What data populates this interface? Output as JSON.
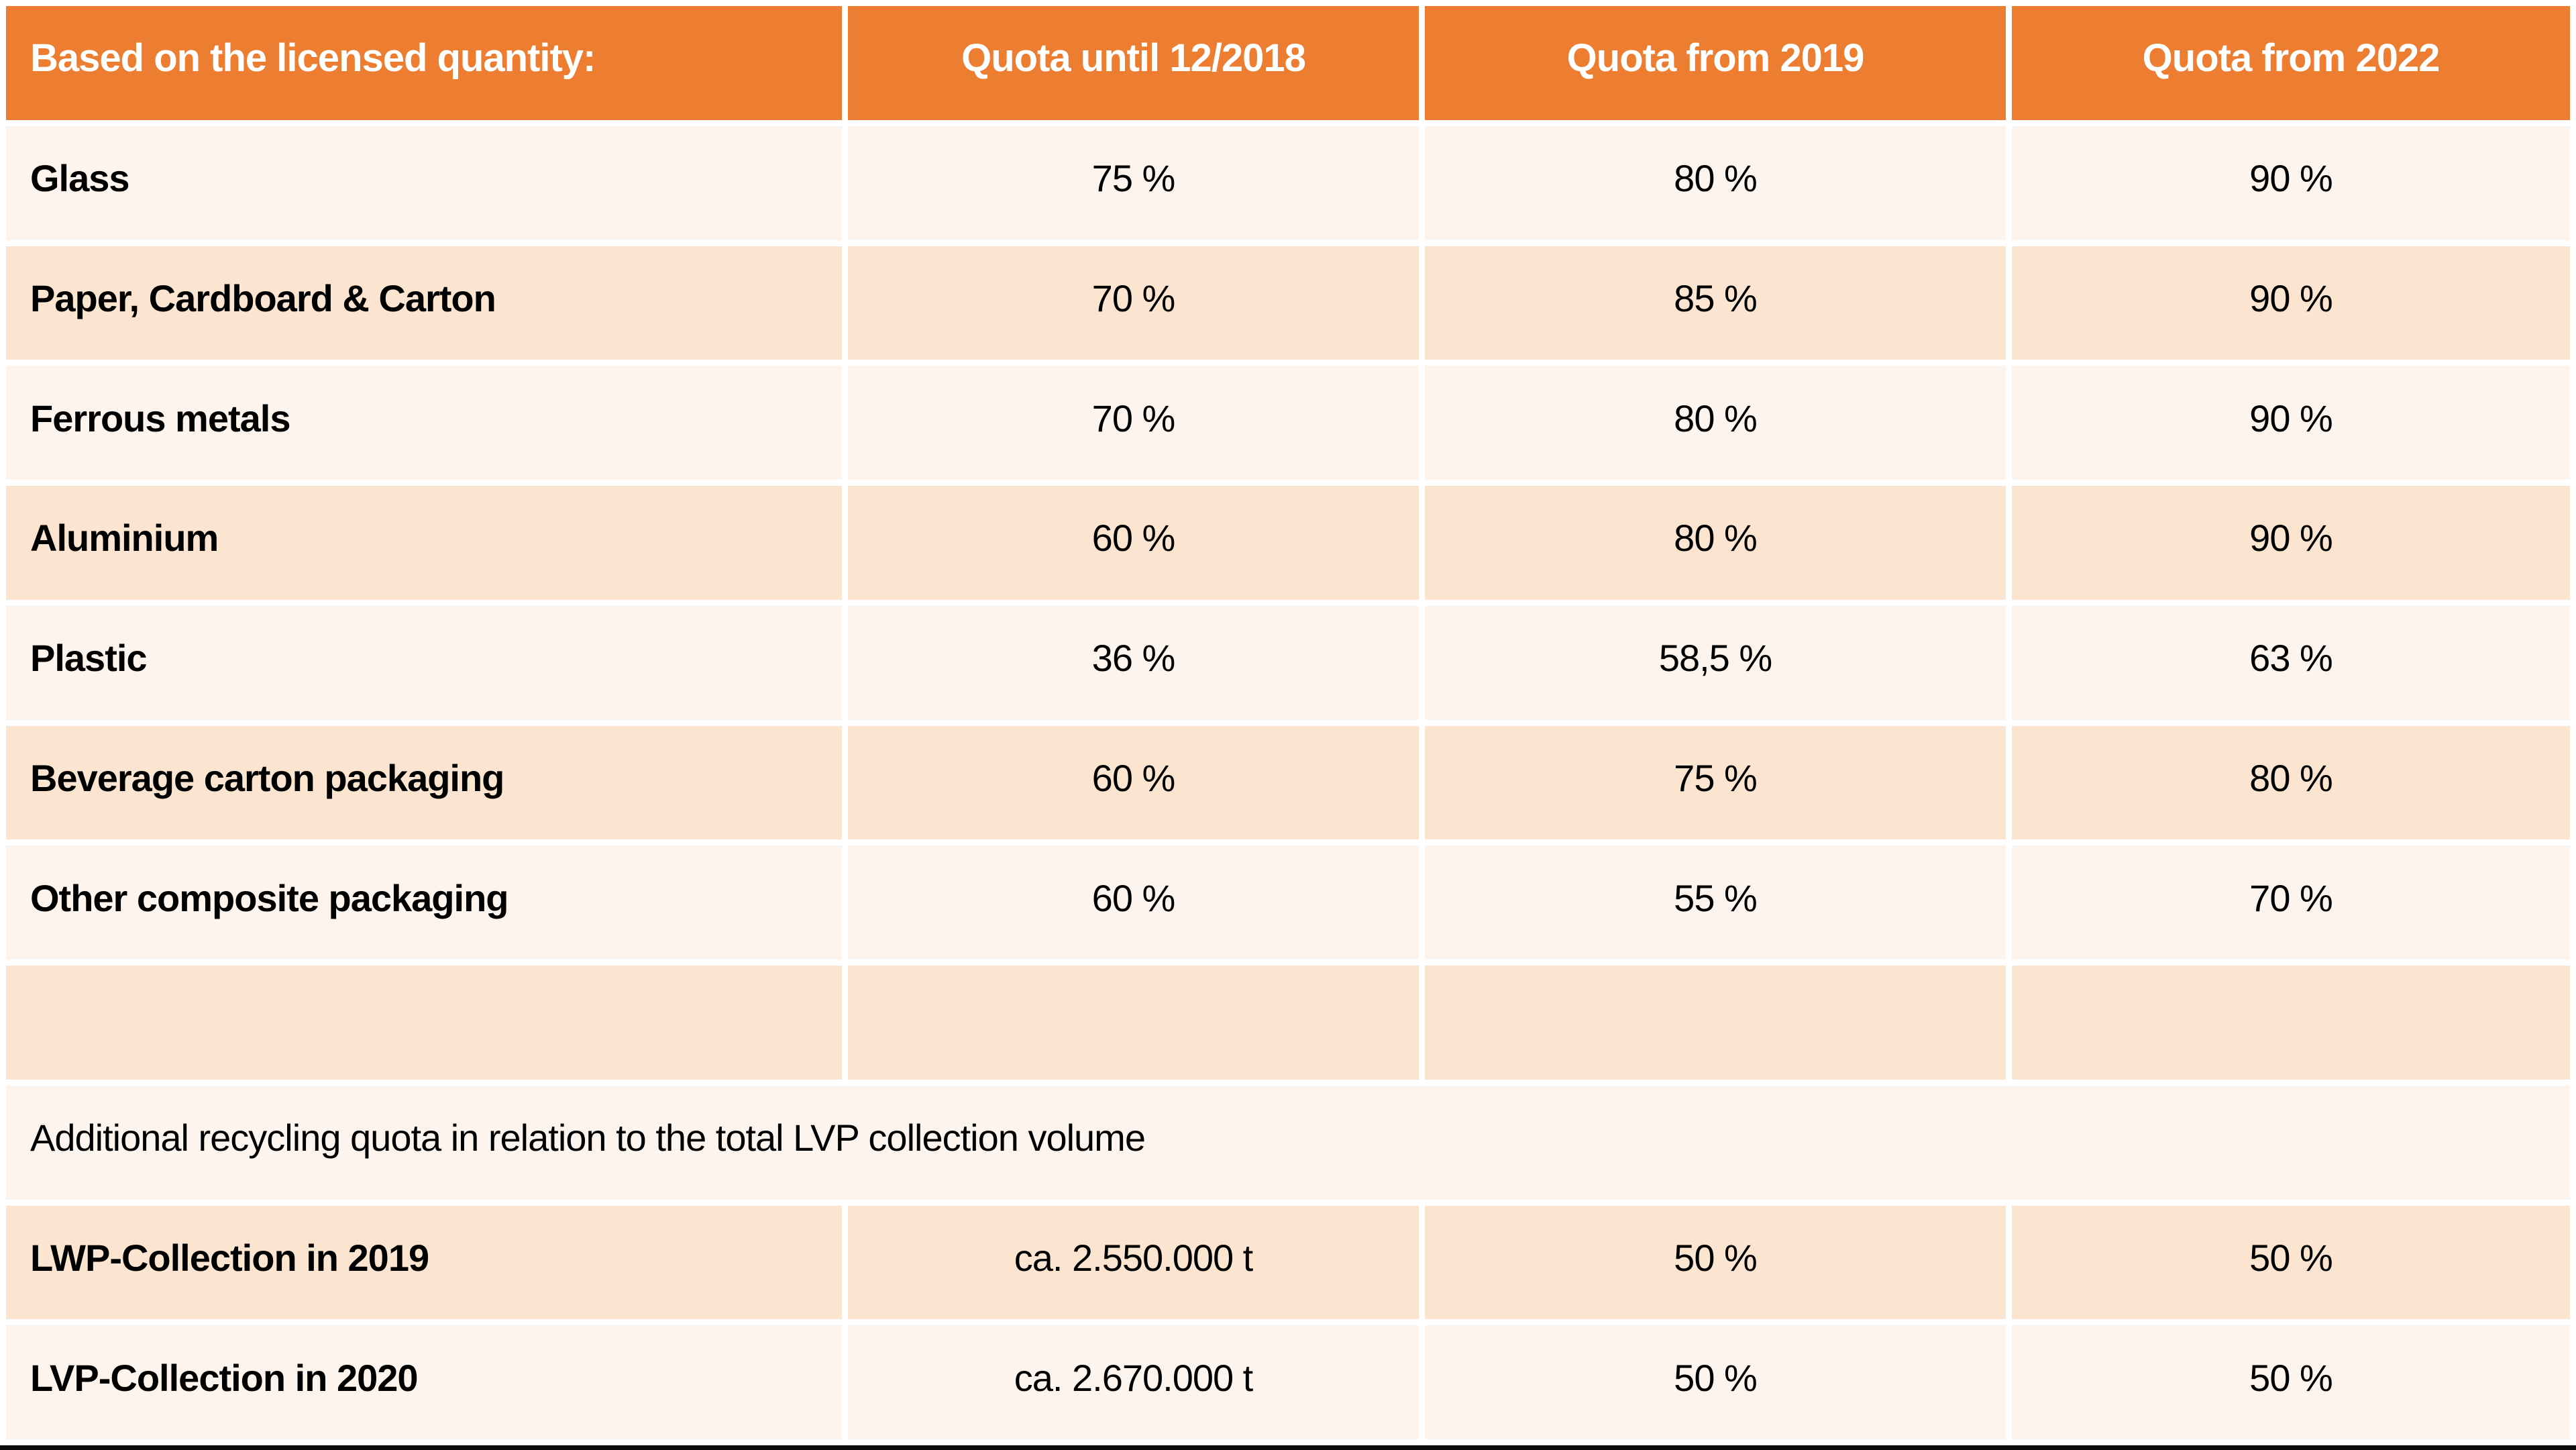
{
  "table": {
    "header": [
      "Based on the licensed quantity:",
      "Quota until 12/2018",
      "Quota from 2019",
      "Quota from 2022"
    ],
    "rows": [
      {
        "label": "Glass",
        "values": [
          "75 %",
          "80 %",
          "90 %"
        ]
      },
      {
        "label": "Paper, Cardboard & Carton",
        "values": [
          "70 %",
          "85 %",
          "90 %"
        ]
      },
      {
        "label": "Ferrous metals",
        "values": [
          "70 %",
          "80 %",
          "90 %"
        ]
      },
      {
        "label": "Aluminium",
        "values": [
          "60 %",
          "80 %",
          "90 %"
        ]
      },
      {
        "label": "Plastic",
        "values": [
          "36 %",
          "58,5 %",
          "63 %"
        ]
      },
      {
        "label": "Beverage carton packaging",
        "values": [
          "60 %",
          "75 %",
          "80 %"
        ]
      },
      {
        "label": "Other composite packaging",
        "values": [
          "60 %",
          "55 %",
          "70 %"
        ]
      }
    ],
    "note": "Additional recycling quota in relation to the total LVP collection volume",
    "collection_rows": [
      {
        "label": "LWP-Collection in 2019",
        "values": [
          "ca. 2.550.000 t",
          "50 %",
          "50 %"
        ]
      },
      {
        "label": "LVP-Collection in 2020",
        "values": [
          "ca. 2.670.000 t",
          "50 %",
          "50 %"
        ]
      }
    ]
  },
  "colors": {
    "header_bg": "#ED7D31",
    "header_text": "#FFFFFF",
    "row_light": "#FDF4ED",
    "row_dark": "#FBE5D1",
    "body_text": "#000000",
    "gap": "#FFFFFF",
    "bottom_bar": "#0B0B0B"
  },
  "chart_data": {
    "type": "table",
    "title": "Based on the licensed quantity:",
    "columns": [
      "Based on the licensed quantity:",
      "Quota until 12/2018",
      "Quota from 2019",
      "Quota from 2022"
    ],
    "rows": [
      [
        "Glass",
        "75 %",
        "80 %",
        "90 %"
      ],
      [
        "Paper, Cardboard & Carton",
        "70 %",
        "85 %",
        "90 %"
      ],
      [
        "Ferrous metals",
        "70 %",
        "80 %",
        "90 %"
      ],
      [
        "Aluminium",
        "60 %",
        "80 %",
        "90 %"
      ],
      [
        "Plastic",
        "36 %",
        "58,5 %",
        "63 %"
      ],
      [
        "Beverage carton packaging",
        "60 %",
        "75 %",
        "80 %"
      ],
      [
        "Other composite packaging",
        "60 %",
        "55 %",
        "70 %"
      ],
      [
        "",
        "",
        "",
        ""
      ],
      [
        "Additional recycling quota in relation to the total LVP collection volume",
        "",
        "",
        ""
      ],
      [
        "LWP-Collection in 2019",
        "ca. 2.550.000 t",
        "50 %",
        "50 %"
      ],
      [
        "LVP-Collection in 2020",
        "ca. 2.670.000 t",
        "50 %",
        "50 %"
      ]
    ],
    "layout_hints": {
      "banded_rows": true,
      "header_style": "orange background, white bold text",
      "value_alignment": "center",
      "label_alignment": "left",
      "note_row_spans_all_columns": true
    }
  }
}
